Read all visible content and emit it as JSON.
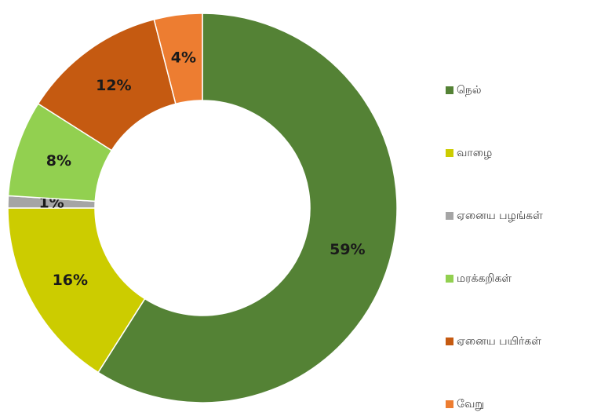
{
  "chart_data": {
    "type": "donut",
    "categories": [
      "நெல்",
      "வாழை",
      "ஏனைய பழங்கள்",
      "மரக்கறிகள்",
      "ஏனைய பயிர்கள்",
      "வேறு"
    ],
    "values": [
      59,
      16,
      1,
      8,
      12,
      4
    ],
    "value_labels": [
      "59%",
      "16%",
      "1%",
      "8%",
      "12%",
      "4%"
    ],
    "colors": [
      "#548235",
      "#cccc00",
      "#a5a5a5",
      "#92d050",
      "#c55a11",
      "#ed7d31"
    ],
    "legend": "right"
  }
}
